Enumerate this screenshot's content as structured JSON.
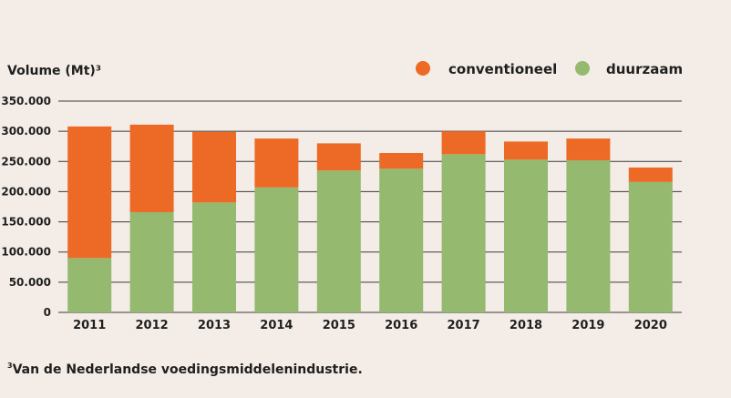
{
  "chart_data": {
    "type": "bar",
    "stacked": true,
    "ylabel": "Volume (Mt)³",
    "categories": [
      "2011",
      "2012",
      "2013",
      "2014",
      "2015",
      "2016",
      "2017",
      "2018",
      "2019",
      "2020"
    ],
    "series": [
      {
        "name": "duurzaam",
        "color": "#94b96f",
        "values": [
          90000,
          166000,
          182000,
          207000,
          235000,
          238000,
          262000,
          253000,
          252000,
          216000
        ]
      },
      {
        "name": "conventioneel",
        "color": "#ec6a26",
        "values": [
          218000,
          145000,
          117000,
          81000,
          45000,
          26000,
          38000,
          30000,
          36000,
          24000
        ]
      }
    ],
    "ylim": [
      0,
      350000
    ],
    "yticks": [
      0,
      50000,
      100000,
      150000,
      200000,
      250000,
      300000,
      350000
    ],
    "ytick_labels": [
      "0",
      "50.000",
      "100.000",
      "150.000",
      "200.000",
      "250.000",
      "300.000",
      "350.000"
    ],
    "legend_order": [
      "conventioneel",
      "duurzaam"
    ],
    "legend_position": "top-right",
    "grid": true
  },
  "footnote": {
    "marker": "3",
    "text": "Van de Nederlandse voedingsmiddelenindustrie."
  }
}
